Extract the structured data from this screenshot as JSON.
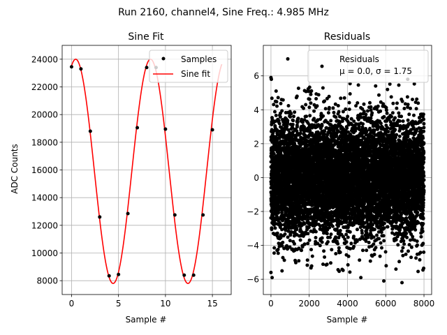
{
  "figure": {
    "suptitle": "Run 2160, channel4, Sine Freq.: 4.985 MHz",
    "background": "#ffffff"
  },
  "chart_data": [
    {
      "type": "scatter",
      "title": "Sine Fit",
      "xlabel": "Sample #",
      "ylabel": "ADC Counts",
      "xlim": [
        -1,
        17
      ],
      "ylim": [
        7000,
        25000
      ],
      "xticks": [
        0,
        5,
        10,
        15
      ],
      "yticks": [
        8000,
        10000,
        12000,
        14000,
        16000,
        18000,
        20000,
        22000,
        24000
      ],
      "grid": true,
      "legend_position": "top-right",
      "series": [
        {
          "name": "Samples",
          "kind": "markers",
          "color": "#000000",
          "x": [
            0,
            1,
            2,
            3,
            4,
            5,
            6,
            7,
            8,
            9,
            10,
            11,
            12,
            13,
            14,
            15
          ],
          "y": [
            23450,
            23300,
            18800,
            12600,
            8350,
            8450,
            12850,
            19050,
            23400,
            23400,
            18950,
            12750,
            8400,
            8400,
            12750,
            18900
          ]
        },
        {
          "name": "Sine fit",
          "kind": "line",
          "color": "#ff0000",
          "model": {
            "offset": 15900,
            "amplitude": 8100,
            "period": 7.97,
            "peak_x": 0.44,
            "x_range": [
              0,
              16
            ]
          }
        }
      ]
    },
    {
      "type": "scatter",
      "title": "Residuals",
      "xlabel": "Sample #",
      "ylabel": "",
      "xlim": [
        -400,
        8400
      ],
      "ylim": [
        -6.9,
        7.8
      ],
      "xticks": [
        0,
        2000,
        4000,
        6000,
        8000
      ],
      "yticks": [
        -6,
        -4,
        -2,
        0,
        2,
        4,
        6
      ],
      "grid": true,
      "legend_position": "top-right",
      "series": [
        {
          "name": "Residuals",
          "color": "#000000",
          "n_points": 8000,
          "x_range": [
            0,
            8000
          ],
          "mean": 0.0,
          "std": 1.75
        }
      ],
      "legend_lines": [
        "Residuals",
        "μ = 0.0, σ = 1.75"
      ],
      "outliers": [
        {
          "x": 0,
          "y": 5.9
        },
        {
          "x": 20,
          "y": 5.8
        },
        {
          "x": 880,
          "y": 7.0
        },
        {
          "x": 7150,
          "y": 5.8
        },
        {
          "x": 0,
          "y": -5.6
        },
        {
          "x": 60,
          "y": -5.9
        },
        {
          "x": 5900,
          "y": -6.1
        },
        {
          "x": 6850,
          "y": -6.2
        },
        {
          "x": 4700,
          "y": -5.9
        }
      ]
    }
  ]
}
